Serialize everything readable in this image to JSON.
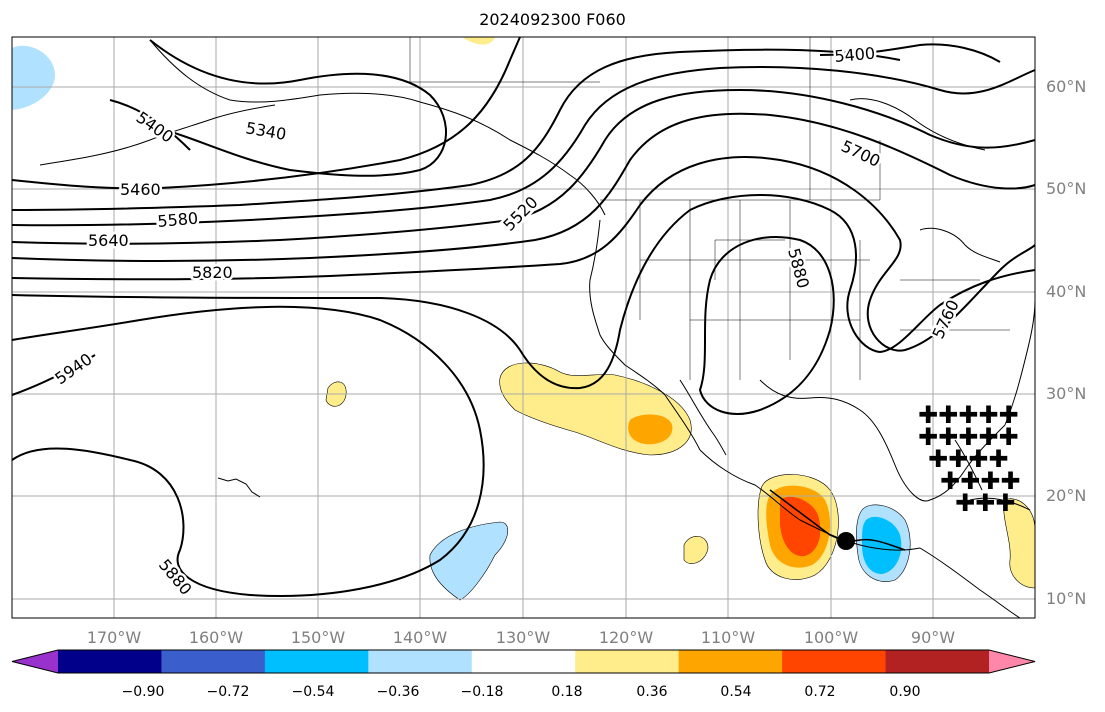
{
  "title": "2024092300 F060",
  "latitude_labels": [
    "60°N",
    "50°N",
    "40°N",
    "30°N",
    "20°N",
    "10°N"
  ],
  "longitude_labels": [
    "170°W",
    "160°W",
    "150°W",
    "140°W",
    "130°W",
    "120°W",
    "110°W",
    "100°W",
    "90°W"
  ],
  "contour_labels": [
    "5400",
    "5340",
    "5460",
    "5580",
    "5640",
    "5820",
    "5940",
    "5880",
    "5520",
    "5880",
    "5700",
    "5400",
    "5760"
  ],
  "colorbar": {
    "tick_labels": [
      "−0.90",
      "−0.72",
      "−0.54",
      "−0.36",
      "−0.18",
      "0.18",
      "0.36",
      "0.54",
      "0.72",
      "0.90"
    ],
    "colors": [
      "#9932cc",
      "#00008b",
      "#3a5fcd",
      "#00bfff",
      "#b0e2ff",
      "#ffffff",
      "#ffec8b",
      "#ffa500",
      "#ff4500",
      "#b22222",
      "#ff88aa"
    ]
  },
  "colors": {
    "grid": "#aaaaaa",
    "contour": "#000000",
    "land_border": "#000000"
  }
}
